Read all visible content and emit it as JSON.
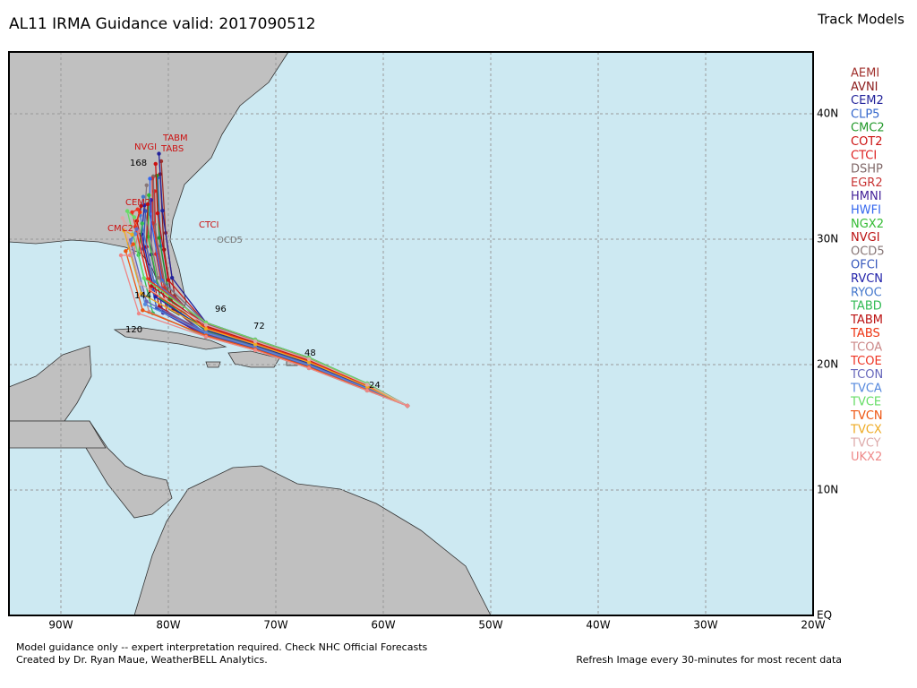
{
  "header": {
    "title": "AL11 IRMA Guidance valid: 2017090512",
    "legend_title": "Track Models"
  },
  "models": [
    {
      "name": "AEMI",
      "color": "#a0302c"
    },
    {
      "name": "AVNI",
      "color": "#8b1a1a"
    },
    {
      "name": "CEM2",
      "color": "#22229a"
    },
    {
      "name": "CLP5",
      "color": "#3366cc"
    },
    {
      "name": "CMC2",
      "color": "#22992a"
    },
    {
      "name": "COT2",
      "color": "#cc1111"
    },
    {
      "name": "CTCI",
      "color": "#dd2222"
    },
    {
      "name": "DSHP",
      "color": "#806868"
    },
    {
      "name": "EGR2",
      "color": "#c83333"
    },
    {
      "name": "HMNI",
      "color": "#442299"
    },
    {
      "name": "HWFI",
      "color": "#3366ee"
    },
    {
      "name": "NGX2",
      "color": "#33bb33"
    },
    {
      "name": "NVGI",
      "color": "#bb1111"
    },
    {
      "name": "OCD5",
      "color": "#887777"
    },
    {
      "name": "OFCI",
      "color": "#3355bb"
    },
    {
      "name": "RVCN",
      "color": "#2222aa"
    },
    {
      "name": "RYOC",
      "color": "#4477cc"
    },
    {
      "name": "TABD",
      "color": "#33bb55"
    },
    {
      "name": "TABM",
      "color": "#bb1111"
    },
    {
      "name": "TABS",
      "color": "#ee3311"
    },
    {
      "name": "TCOA",
      "color": "#cc8888"
    },
    {
      "name": "TCOE",
      "color": "#ee3322"
    },
    {
      "name": "TCON",
      "color": "#6666bb"
    },
    {
      "name": "TVCA",
      "color": "#5588dd"
    },
    {
      "name": "TVCE",
      "color": "#66dd66"
    },
    {
      "name": "TVCN",
      "color": "#ee5511"
    },
    {
      "name": "TVCX",
      "color": "#eeaa22"
    },
    {
      "name": "TVCY",
      "color": "#ddaaaa"
    },
    {
      "name": "UKX2",
      "color": "#ee8888"
    }
  ],
  "lon_labels": [
    "90W",
    "80W",
    "70W",
    "60W",
    "50W",
    "40W",
    "30W",
    "20W"
  ],
  "lat_labels": [
    "40N",
    "30N",
    "20N",
    "10N",
    "EQ"
  ],
  "map_labels": [
    "NVGI",
    "TABM",
    "TABS",
    "CTCI",
    "CEM2",
    "CMC2",
    "OCD5",
    "168",
    "144",
    "120",
    "96",
    "72",
    "48",
    "24"
  ],
  "footer": {
    "line1": "Model guidance only -- expert interpretation required.  Check NHC Official Forecasts",
    "line2": "Created by Dr. Ryan Maue, WeatherBELL Analytics.",
    "refresh": "Refresh Image every 30-minutes for most recent data"
  }
}
